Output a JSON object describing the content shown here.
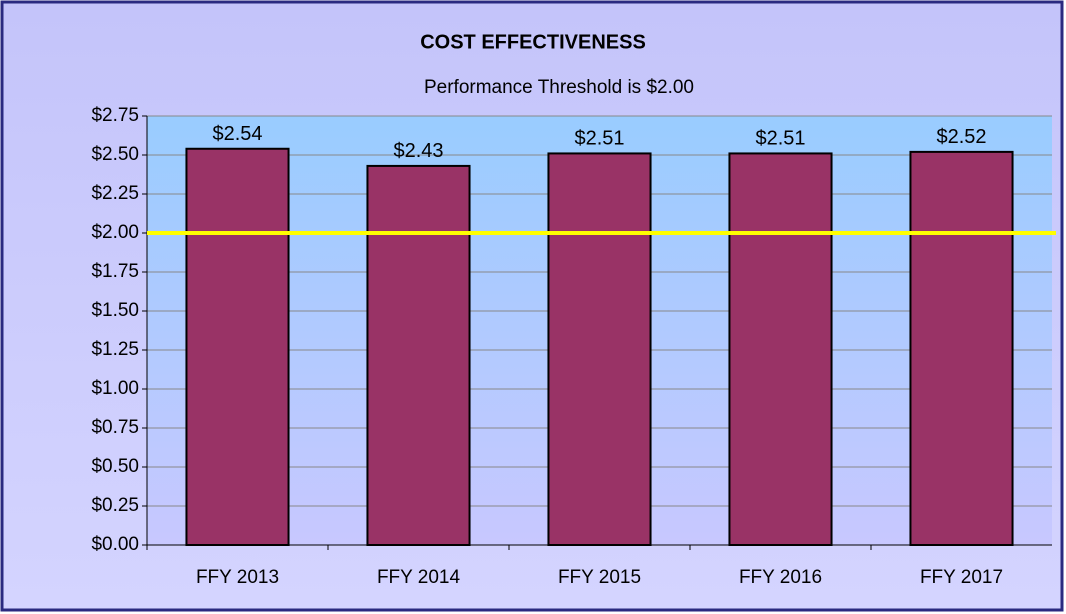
{
  "chart_data": {
    "type": "bar",
    "title": "COST EFFECTIVENESS",
    "subtitle": "Performance Threshold is $2.00",
    "categories": [
      "FFY 2013",
      "FFY 2014",
      "FFY 2015",
      "FFY 2016",
      "FFY 2017"
    ],
    "values": [
      2.54,
      2.43,
      2.51,
      2.51,
      2.52
    ],
    "value_labels": [
      "$2.54",
      "$2.43",
      "$2.51",
      "$2.51",
      "$2.52"
    ],
    "color": "#993366",
    "ylim": [
      0,
      2.75
    ],
    "yticks": [
      {
        "value": 0,
        "label": "$0.00"
      },
      {
        "value": 0.25,
        "label": "$0.25"
      },
      {
        "value": 0.5,
        "label": "$0.50"
      },
      {
        "value": 0.75,
        "label": "$0.75"
      },
      {
        "value": 1,
        "label": "$1.00"
      },
      {
        "value": 1.25,
        "label": "$1.25"
      },
      {
        "value": 1.5,
        "label": "$1.50"
      },
      {
        "value": 1.75,
        "label": "$1.75"
      },
      {
        "value": 2,
        "label": "$2.00"
      },
      {
        "value": 2.25,
        "label": "$2.25"
      },
      {
        "value": 2.5,
        "label": "$2.50"
      },
      {
        "value": 2.75,
        "label": "$2.75"
      }
    ],
    "grid": true,
    "threshold": 2,
    "threshold_color": "#ffff00"
  }
}
